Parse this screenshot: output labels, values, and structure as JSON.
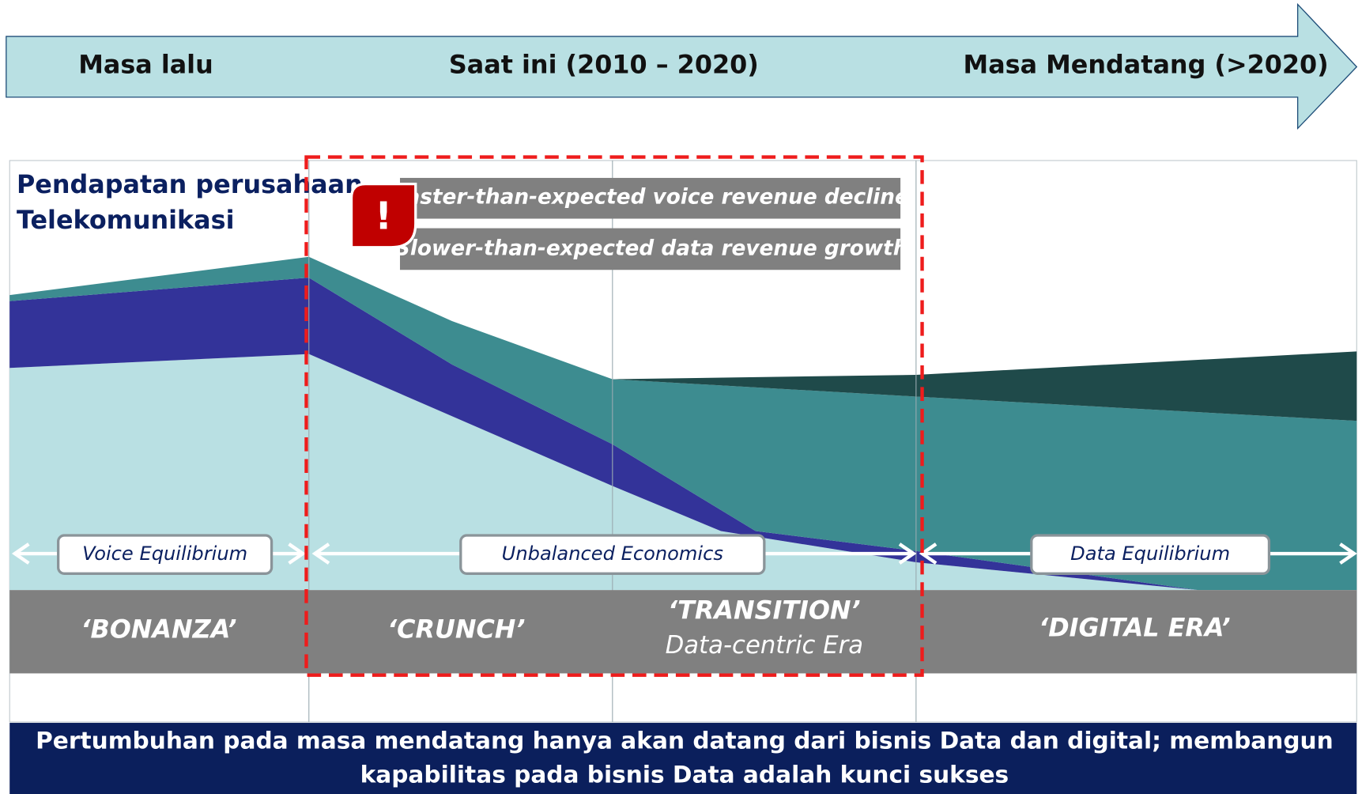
{
  "timeline": {
    "past": "Masa lalu",
    "present": "Saat ini (2010 – 2020)",
    "future": "Masa Mendatang (>2020)"
  },
  "chart": {
    "title_lines": [
      "Pendapatan perusahaan",
      "Telekomunikasi"
    ]
  },
  "alerts": {
    "icon": "!",
    "items": [
      "Faster-than-expected voice revenue decline",
      "Slower-than-expected data revenue growth"
    ]
  },
  "equilibria": [
    "Voice Equilibrium",
    "Unbalanced Economics",
    "Data Equilibrium"
  ],
  "eras": {
    "bonanza": "‘BONANZA’",
    "crunch": "‘CRUNCH’",
    "transition": "‘TRANSITION’",
    "transition_sub": "Data-centric Era",
    "digital": "‘DIGITAL ERA’"
  },
  "footer": {
    "lines": [
      "Pertumbuhan pada masa mendatang hanya akan datang dari bisnis Data dan digital; membangun",
      "kapabilitas pada bisnis Data adalah kunci sukses"
    ]
  }
}
